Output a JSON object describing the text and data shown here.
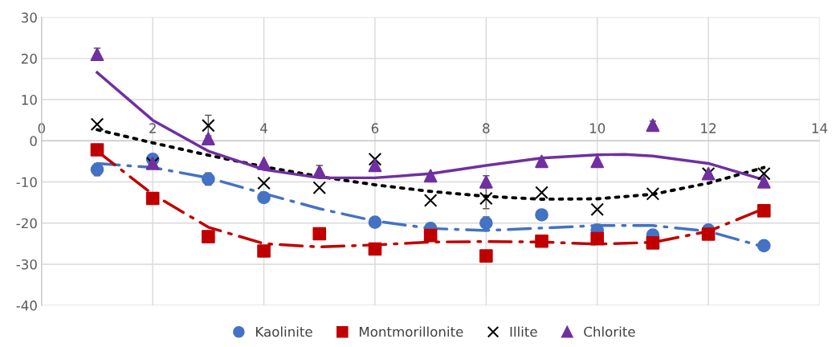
{
  "chart_data": {
    "type": "scatter",
    "x": [
      1,
      2,
      3,
      4,
      5,
      6,
      7,
      8,
      9,
      10,
      11,
      12,
      13
    ],
    "xlim": [
      0,
      14
    ],
    "xticks": [
      0,
      2,
      4,
      6,
      8,
      10,
      12,
      14
    ],
    "ylim": [
      -40,
      30
    ],
    "yticks": [
      -40,
      -30,
      -20,
      -10,
      0,
      10,
      20,
      30
    ],
    "grid": true,
    "legend": "bottom",
    "series": [
      {
        "name": "Kaolinite",
        "color": "#4472c4",
        "marker": "circle",
        "values": [
          -7,
          -4.5,
          -9.3,
          -13.8,
          null,
          -19.8,
          -21.3,
          -20,
          -18,
          -21.8,
          -22.9,
          -21.7,
          -25.5
        ],
        "errors": [
          1.5,
          null,
          1.5,
          null,
          null,
          null,
          null,
          1.5,
          null,
          1.5,
          null,
          null,
          null
        ]
      },
      {
        "name": "Montmorillonite",
        "color": "#c00000",
        "marker": "square",
        "values": [
          -2.2,
          -14,
          -23.3,
          -26.8,
          -22.6,
          -26.3,
          -23,
          -28,
          -24.4,
          -23.8,
          -24.8,
          -22.7,
          -17
        ]
      },
      {
        "name": "Illite",
        "color": "#000000",
        "marker": "cross",
        "values": [
          4,
          -5.5,
          3.7,
          -10.3,
          -11.4,
          -4.5,
          -14.5,
          -14,
          -12.6,
          -16.7,
          -12.9,
          -8,
          -8
        ],
        "errors": [
          null,
          null,
          2.5,
          null,
          null,
          null,
          null,
          2.5,
          null,
          null,
          null,
          null,
          null
        ]
      },
      {
        "name": "Chlorite",
        "color": "#7030a0",
        "marker": "triangle",
        "values": [
          21,
          -5.5,
          0.5,
          -5.5,
          -7.5,
          -6,
          -8.5,
          -10,
          -5,
          -5,
          3.8,
          -8,
          -10
        ],
        "errors": [
          1.5,
          null,
          null,
          null,
          1.5,
          null,
          null,
          1.5,
          null,
          null,
          1,
          null,
          null
        ]
      },
      {
        "type": "line",
        "color": "#4472c4",
        "line_style": "dashed",
        "x": [
          1,
          2,
          3,
          4,
          5,
          6,
          7,
          8,
          9,
          10,
          11,
          12,
          13
        ],
        "values": [
          -5.5,
          -6.5,
          -9,
          -12.8,
          -16.5,
          -19.5,
          -21.3,
          -21.8,
          -21.2,
          -20.6,
          -20.6,
          -22,
          -25.8
        ]
      },
      {
        "type": "line",
        "color": "#c00000",
        "line_style": "dashed",
        "x": [
          1,
          2,
          3,
          4,
          5,
          6,
          7,
          8,
          9,
          10,
          11,
          12,
          13
        ],
        "values": [
          -2.5,
          -13,
          -21,
          -25,
          -25.8,
          -25.3,
          -24.6,
          -24.5,
          -24.6,
          -25.1,
          -24.7,
          -22,
          -16.5
        ]
      },
      {
        "type": "line",
        "color": "#000000",
        "line_style": "dotted",
        "x": [
          1,
          2,
          3,
          4,
          5,
          6,
          7,
          8,
          9,
          10,
          11,
          12,
          13
        ],
        "values": [
          2.7,
          -0.5,
          -3.5,
          -6.3,
          -8.7,
          -10.7,
          -12.3,
          -13.5,
          -14.2,
          -14.1,
          -13,
          -10.3,
          -6.5
        ]
      },
      {
        "type": "line",
        "color": "#7030a0",
        "line_style": "solid",
        "x": [
          1,
          2,
          3,
          4,
          5,
          6,
          7,
          8,
          9,
          10,
          10.5,
          11,
          12,
          13
        ],
        "values": [
          16.6,
          5,
          -2.5,
          -7,
          -9,
          -9,
          -8,
          -6,
          -4.2,
          -3.4,
          -3.3,
          -3.7,
          -5.5,
          -9.5
        ]
      }
    ]
  }
}
